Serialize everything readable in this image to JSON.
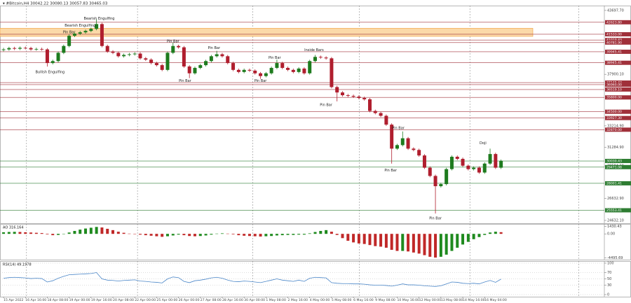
{
  "chart_data": [
    {
      "type": "candlestick",
      "title": "▾ #Bitcoin,H4  30042.22 30080.13 30057.83 30465.03",
      "up_color": "#1e7b1e",
      "down_color": "#b01e2e",
      "xlim": [
        -0.65,
        109.9
      ],
      "ylim": [
        24440,
        44010
      ],
      "yticks": [
        {
          "value": 43697.7,
          "label": "43697.70"
        },
        {
          "value": 37900.1,
          "label": "37900.10"
        },
        {
          "value": 33214.9,
          "label": "33214.90"
        },
        {
          "value": 31284.9,
          "label": "31284.90"
        },
        {
          "value": 29584.1,
          "label": "29584.10"
        },
        {
          "value": 26632.9,
          "label": "26632.90"
        },
        {
          "value": 24632.1,
          "label": "24632.10"
        }
      ],
      "separators": [
        4.2,
        24.5,
        45.6,
        65.1,
        85.3,
        105.2
      ],
      "zone": {
        "range": [
          41340,
          42080
        ],
        "color": "#fbd9a8"
      },
      "levels": [
        {
          "value": 42623.8,
          "label": "42623.80",
          "color": "#a0303a"
        },
        {
          "value": 41533,
          "label": "41533.00",
          "color": "#a0303a"
        },
        {
          "value": 41010.43,
          "label": "41010.43",
          "color": "#a0303a"
        },
        {
          "value": 40781.9,
          "label": "40781.90",
          "color": "#a0303a"
        },
        {
          "value": 39945.41,
          "label": "39945.41",
          "color": "#a0303a"
        },
        {
          "value": 38945.41,
          "label": "38945.41",
          "color": "#a0303a"
        },
        {
          "value": 37145.43,
          "label": "37145.43",
          "color": "#a0303a"
        },
        {
          "value": 36960,
          "label": "36960.00",
          "color": "#a0303a"
        },
        {
          "value": 36519.1,
          "label": "36519.10",
          "color": "#a0303a"
        },
        {
          "value": 35800,
          "label": "35800.00",
          "color": "#a0303a"
        },
        {
          "value": 34500,
          "label": "34500.00",
          "color": "#a0303a"
        },
        {
          "value": 33927.3,
          "label": "33927.30",
          "color": "#a0303a"
        },
        {
          "value": 32870,
          "label": "32870.00",
          "color": "#a0303a"
        },
        {
          "value": 30030.43,
          "label": "30030.43",
          "color": "#2e7d32"
        },
        {
          "value": 29471.08,
          "label": "29471.08",
          "color": "#2e7d32"
        },
        {
          "value": 28001.41,
          "label": "28001.41",
          "color": "#2e7d32"
        },
        {
          "value": 25553.41,
          "label": "25553.41",
          "color": "#2e7d32"
        }
      ],
      "annotations": [
        {
          "text": "Bearish Engulfing",
          "x": 17.5,
          "y": 42950
        },
        {
          "text": "Bearish Engulfing",
          "x": 14,
          "y": 42330
        },
        {
          "text": "Pin Bar",
          "x": 12,
          "y": 41710
        },
        {
          "text": "Bullish Engulfing",
          "x": 8.5,
          "y": 38110
        },
        {
          "text": "Pin Bar",
          "x": 31,
          "y": 40900
        },
        {
          "text": "Pin Bar",
          "x": 33.2,
          "y": 37300
        },
        {
          "text": "Pin Bar",
          "x": 38.5,
          "y": 40280
        },
        {
          "text": "Pin Bar",
          "x": 47,
          "y": 37300
        },
        {
          "text": "Pin Bar",
          "x": 49.6,
          "y": 39400
        },
        {
          "text": "Inside Bars",
          "x": 56.8,
          "y": 40100
        },
        {
          "text": "Pin Bar",
          "x": 59,
          "y": 35100
        },
        {
          "text": "Pin Bar",
          "x": 72.2,
          "y": 33020
        },
        {
          "text": "Pin Bar",
          "x": 70.8,
          "y": 29170
        },
        {
          "text": "Doji",
          "x": 87.7,
          "y": 31650
        },
        {
          "text": "Pin Bar",
          "x": 79,
          "y": 24820
        }
      ],
      "open": [
        40100,
        40160,
        40280,
        40220,
        40300,
        40280,
        40160,
        40200,
        40160,
        38920,
        39100,
        39850,
        40470,
        41400,
        41590,
        41710,
        41840,
        42020,
        42460,
        40470,
        39970,
        39850,
        39540,
        39660,
        39720,
        39780,
        39350,
        39230,
        38920,
        38730,
        38300,
        39850,
        40470,
        40350,
        38610,
        37990,
        38480,
        38730,
        39100,
        39540,
        39720,
        39540,
        38920,
        38300,
        38110,
        38300,
        38230,
        37990,
        37740,
        37990,
        38480,
        38920,
        38480,
        38300,
        38110,
        38420,
        37990,
        39100,
        39480,
        39420,
        39350,
        36740,
        36250,
        36000,
        35940,
        35870,
        35750,
        35630,
        34570,
        34380,
        34130,
        33330,
        31150,
        31470,
        32090,
        31150,
        31030,
        30530,
        29420,
        28670,
        27740,
        27930,
        29290,
        30410,
        30220,
        29600,
        29290,
        29420,
        28980,
        29790,
        30660,
        29420
      ],
      "high": [
        40300,
        40400,
        40400,
        40420,
        40420,
        40400,
        40320,
        40320,
        40280,
        39230,
        39970,
        40590,
        41520,
        41710,
        41830,
        41960,
        42140,
        42900,
        42580,
        40590,
        40090,
        39970,
        39780,
        39840,
        39900,
        39900,
        39470,
        39350,
        39040,
        38850,
        39970,
        40780,
        40590,
        40470,
        38730,
        38600,
        38850,
        39220,
        39660,
        40030,
        39840,
        39660,
        39040,
        38420,
        38420,
        38420,
        38350,
        38110,
        38110,
        38600,
        39230,
        39040,
        38600,
        38420,
        38540,
        38540,
        39220,
        39660,
        39600,
        39540,
        39470,
        36860,
        36370,
        36120,
        36060,
        35990,
        35870,
        35750,
        34690,
        34500,
        34250,
        33450,
        31590,
        32710,
        32210,
        31270,
        31150,
        30650,
        29540,
        28790,
        28050,
        29410,
        30530,
        30530,
        30340,
        29720,
        29540,
        29540,
        29910,
        31150,
        30780,
        30160
      ],
      "low": [
        39980,
        40040,
        40100,
        40100,
        40160,
        40040,
        40040,
        40040,
        38600,
        38800,
        38980,
        39730,
        40350,
        41280,
        41470,
        41590,
        41720,
        41900,
        40350,
        39850,
        39730,
        39420,
        39420,
        39540,
        39600,
        39230,
        39110,
        38800,
        38610,
        38180,
        38180,
        39730,
        40230,
        38490,
        37550,
        37870,
        38360,
        38610,
        38980,
        39420,
        39420,
        38800,
        38180,
        37990,
        37990,
        38110,
        37870,
        37490,
        37620,
        37870,
        38360,
        38360,
        38180,
        37990,
        37990,
        37870,
        37870,
        38980,
        39300,
        39230,
        36620,
        35440,
        35880,
        35820,
        35750,
        35630,
        35510,
        34450,
        34260,
        34010,
        33210,
        29790,
        31030,
        31350,
        31030,
        30910,
        30410,
        29300,
        28550,
        25260,
        27620,
        27810,
        29170,
        30100,
        29480,
        29170,
        29170,
        28860,
        28860,
        29670,
        29300,
        29300
      ],
      "close": [
        40160,
        40280,
        40220,
        40300,
        40280,
        40160,
        40200,
        40160,
        38920,
        39100,
        39850,
        40470,
        41400,
        41590,
        41710,
        41840,
        42020,
        42460,
        40470,
        39970,
        39850,
        39540,
        39660,
        39720,
        39780,
        39350,
        39230,
        38920,
        38730,
        38300,
        39850,
        40470,
        40350,
        38610,
        37990,
        38480,
        38730,
        39100,
        39540,
        39720,
        39540,
        38920,
        38300,
        38110,
        38300,
        38230,
        37990,
        37740,
        37990,
        38480,
        38920,
        38480,
        38300,
        38110,
        38420,
        37990,
        39100,
        39480,
        39420,
        39350,
        36740,
        36250,
        36000,
        35940,
        35870,
        35750,
        35630,
        34570,
        34380,
        34130,
        33330,
        31150,
        31470,
        32090,
        31150,
        31030,
        30530,
        29420,
        28670,
        27740,
        27930,
        29290,
        30410,
        30220,
        29600,
        29290,
        29420,
        28980,
        29790,
        30660,
        29420,
        30040
      ]
    },
    {
      "type": "histogram",
      "title": "AO 316.164",
      "up_color": "#1e8a1e",
      "down_color": "#c02828",
      "xlim": [
        -0.65,
        109.9
      ],
      "ylim": [
        -4700,
        1600
      ],
      "yticks": [
        {
          "value": 1430.43,
          "label": "1430.43"
        },
        {
          "value": 0,
          "label": "0.00"
        },
        {
          "value": -4495.69,
          "label": "-4495.69"
        }
      ],
      "values": [
        300,
        350,
        380,
        350,
        300,
        250,
        200,
        150,
        -100,
        -250,
        -200,
        -50,
        250,
        550,
        800,
        1000,
        1150,
        1300,
        1200,
        950,
        700,
        400,
        200,
        50,
        -50,
        -150,
        -250,
        -350,
        -450,
        -550,
        -450,
        -300,
        -150,
        -250,
        -400,
        -450,
        -400,
        -300,
        -150,
        50,
        100,
        50,
        -100,
        -250,
        -350,
        -400,
        -450,
        -500,
        -450,
        -400,
        -300,
        -250,
        -200,
        -200,
        -150,
        -150,
        100,
        350,
        550,
        700,
        400,
        -200,
        -800,
        -1300,
        -1600,
        -1800,
        -1900,
        -2100,
        -2300,
        -2400,
        -2600,
        -3000,
        -3200,
        -3200,
        -3300,
        -3500,
        -3700,
        -4000,
        -4300,
        -4450,
        -4300,
        -3900,
        -3200,
        -2600,
        -2000,
        -1500,
        -1000,
        -600,
        -200,
        250,
        400,
        316.164
      ]
    },
    {
      "type": "line",
      "title": "RSI(14) 49.1978",
      "color": "#4a86c8",
      "xlim": [
        -0.65,
        109.9
      ],
      "ylim": [
        0,
        100
      ],
      "yticks": [
        100,
        70,
        50,
        30,
        0
      ],
      "grid": true,
      "xticks": [
        {
          "value": 0,
          "label": "15 Apr 2022"
        },
        {
          "value": 4,
          "label": "16 Apr 16:00"
        },
        {
          "value": 8,
          "label": "18 Apr 08:00"
        },
        {
          "value": 12,
          "label": "19 Apr 00:00"
        },
        {
          "value": 16,
          "label": "19 Apr 16:00"
        },
        {
          "value": 20,
          "label": "20 Apr 08:00"
        },
        {
          "value": 24,
          "label": "22 Apr 00:00"
        },
        {
          "value": 28,
          "label": "25 Apr 00:00"
        },
        {
          "value": 32,
          "label": "26 Apr 00:00"
        },
        {
          "value": 36,
          "label": "27 Apr 08:00"
        },
        {
          "value": 40,
          "label": "28 Apr 16:00"
        },
        {
          "value": 44,
          "label": "30 Apr 00:00"
        },
        {
          "value": 48,
          "label": "1 May 08:00"
        },
        {
          "value": 52,
          "label": "2 May 16:00"
        },
        {
          "value": 56,
          "label": "4 May 00:00"
        },
        {
          "value": 60,
          "label": "5 May 08:00"
        },
        {
          "value": 64,
          "label": "6 May 16:00"
        },
        {
          "value": 68,
          "label": "9 May 08:00"
        },
        {
          "value": 72,
          "label": "10 May 16:00"
        },
        {
          "value": 76,
          "label": "12 May 00:00"
        },
        {
          "value": 80,
          "label": "13 May 08:00"
        },
        {
          "value": 84,
          "label": "14 May 16:00"
        },
        {
          "value": 88,
          "label": "16 May 04:00"
        }
      ],
      "values": [
        52,
        54,
        55,
        54,
        53,
        51,
        52,
        51,
        40,
        44,
        52,
        58,
        63,
        64,
        65,
        66,
        67,
        70,
        50,
        46,
        45,
        43,
        45,
        46,
        47,
        43,
        42,
        40,
        39,
        37,
        50,
        56,
        54,
        42,
        38,
        44,
        46,
        49,
        53,
        55,
        52,
        46,
        42,
        41,
        43,
        42,
        40,
        38,
        42,
        46,
        50,
        46,
        44,
        42,
        46,
        42,
        52,
        55,
        54,
        53,
        38,
        36,
        35,
        35,
        34,
        34,
        33,
        31,
        30,
        30,
        29,
        27,
        30,
        34,
        31,
        31,
        30,
        28,
        27,
        26,
        28,
        34,
        40,
        39,
        36,
        35,
        36,
        34,
        40,
        45,
        39,
        49.1978
      ]
    }
  ]
}
